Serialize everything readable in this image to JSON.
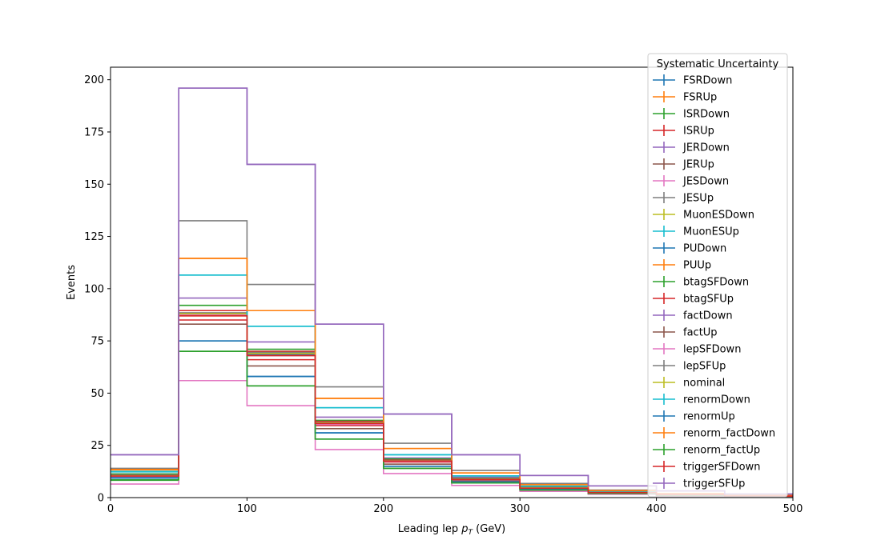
{
  "chart_data": {
    "type": "step",
    "xlabel_main": "Leading lep ",
    "xlabel_sym": "p",
    "xlabel_sub": "T",
    "xlabel_unit": " (GeV)",
    "ylabel": "Events",
    "xlim": [
      0,
      500
    ],
    "ylim": [
      0,
      206
    ],
    "xticks": [
      0,
      100,
      200,
      300,
      400,
      500
    ],
    "yticks": [
      0,
      25,
      50,
      75,
      100,
      125,
      150,
      175,
      200
    ],
    "legend_title": "Systematic Uncertainty",
    "legend_position": "upper-right",
    "bin_edges": [
      0,
      50,
      100,
      150,
      200,
      250,
      300,
      350,
      400,
      450,
      500
    ],
    "series": [
      {
        "name": "FSRDown",
        "color": "#1f77b4",
        "values": [
          9.3,
          75,
          58,
          31,
          15,
          7.5,
          4,
          2.2,
          1.3,
          0.7
        ]
      },
      {
        "name": "FSRUp",
        "color": "#ff7f0e",
        "values": [
          11.3,
          87,
          68,
          36,
          18,
          9,
          5,
          2.6,
          1.5,
          0.8
        ]
      },
      {
        "name": "ISRDown",
        "color": "#2ca02c",
        "values": [
          8.3,
          70,
          53.5,
          28,
          14,
          7,
          3.6,
          2,
          1.1,
          0.6
        ]
      },
      {
        "name": "ISRUp",
        "color": "#d62728",
        "values": [
          10.3,
          85,
          66,
          34.5,
          17,
          8.5,
          4.5,
          2.4,
          1.4,
          0.7
        ]
      },
      {
        "name": "JERDown",
        "color": "#9467bd",
        "values": [
          11.3,
          95.5,
          74.5,
          38.5,
          19,
          9.8,
          5,
          2.7,
          1.6,
          0.8
        ]
      },
      {
        "name": "JERUp",
        "color": "#8c564b",
        "values": [
          9.8,
          83,
          63,
          33,
          16,
          8,
          4.2,
          2.3,
          1.3,
          0.7
        ]
      },
      {
        "name": "JESDown",
        "color": "#e377c2",
        "values": [
          6.5,
          56,
          44,
          23,
          11.5,
          5.8,
          3,
          1.6,
          0.9,
          0.5
        ]
      },
      {
        "name": "JESUp",
        "color": "#7f7f7f",
        "values": [
          14,
          132.5,
          102,
          53,
          26,
          13,
          6.8,
          3.6,
          2,
          1.1
        ]
      },
      {
        "name": "MuonESDown",
        "color": "#bcbd22",
        "values": [
          10.5,
          88,
          69,
          36,
          17.5,
          8.8,
          4.6,
          2.5,
          1.4,
          0.8
        ]
      },
      {
        "name": "MuonESUp",
        "color": "#17becf",
        "values": [
          12.3,
          106.5,
          82,
          43,
          20.5,
          10.4,
          5.5,
          2.9,
          1.7,
          0.9
        ]
      },
      {
        "name": "PUDown",
        "color": "#1f77b4",
        "values": [
          10.4,
          87.5,
          68.5,
          35.5,
          17.5,
          8.7,
          4.5,
          2.5,
          1.4,
          0.7
        ]
      },
      {
        "name": "PUUp",
        "color": "#ff7f0e",
        "values": [
          13.3,
          114.5,
          89.5,
          47.5,
          23.5,
          11.8,
          6.2,
          3.3,
          1.9,
          1
        ]
      },
      {
        "name": "btagSFDown",
        "color": "#2ca02c",
        "values": [
          11.3,
          92,
          71,
          37,
          18.5,
          9.2,
          4.8,
          2.6,
          1.5,
          0.8
        ]
      },
      {
        "name": "btagSFUp",
        "color": "#d62728",
        "values": [
          10.7,
          89.5,
          70,
          36.5,
          18,
          9,
          4.7,
          2.5,
          1.4,
          0.8
        ]
      },
      {
        "name": "factDown",
        "color": "#9467bd",
        "values": [
          20.5,
          196,
          159.5,
          83,
          40,
          20.5,
          10.6,
          5.6,
          3.2,
          1.7
        ]
      },
      {
        "name": "factUp",
        "color": "#8c564b",
        "values": [
          10.2,
          88,
          68,
          35.5,
          17.5,
          8.7,
          4.5,
          2.4,
          1.4,
          0.7
        ]
      },
      {
        "name": "lepSFDown",
        "color": "#e377c2",
        "values": [
          10.1,
          87.5,
          68,
          35,
          17.3,
          8.6,
          4.5,
          2.4,
          1.4,
          0.7
        ]
      },
      {
        "name": "lepSFUp",
        "color": "#7f7f7f",
        "values": [
          10.6,
          88.5,
          69.5,
          36,
          17.8,
          8.9,
          4.6,
          2.5,
          1.4,
          0.8
        ]
      },
      {
        "name": "nominal",
        "color": "#bcbd22",
        "values": [
          10.4,
          88,
          69,
          35.8,
          17.6,
          8.8,
          4.6,
          2.5,
          1.4,
          0.7
        ]
      },
      {
        "name": "renormDown",
        "color": "#17becf",
        "values": [
          12.5,
          106.5,
          82,
          43,
          20.5,
          10.4,
          5.5,
          2.9,
          1.7,
          0.9
        ]
      },
      {
        "name": "renormUp",
        "color": "#1f77b4",
        "values": [
          9.5,
          75,
          58,
          31,
          15,
          7.5,
          4,
          2.2,
          1.3,
          0.7
        ]
      },
      {
        "name": "renorm_factDown",
        "color": "#ff7f0e",
        "values": [
          13.5,
          114.5,
          89.5,
          47.5,
          23.5,
          11.8,
          6.2,
          3.3,
          1.9,
          1
        ]
      },
      {
        "name": "renorm_factUp",
        "color": "#2ca02c",
        "values": [
          8.5,
          70,
          53.5,
          28,
          14,
          7,
          3.6,
          2,
          1.1,
          0.6
        ]
      },
      {
        "name": "triggerSFDown",
        "color": "#d62728",
        "values": [
          10.3,
          87,
          68,
          35.5,
          17.5,
          8.7,
          4.5,
          2.4,
          1.4,
          0.7
        ]
      },
      {
        "name": "triggerSFUp",
        "color": "#9467bd",
        "values": [
          20.5,
          196,
          159.5,
          83,
          40,
          20.5,
          10.6,
          5.6,
          3.2,
          1.7
        ]
      }
    ]
  }
}
